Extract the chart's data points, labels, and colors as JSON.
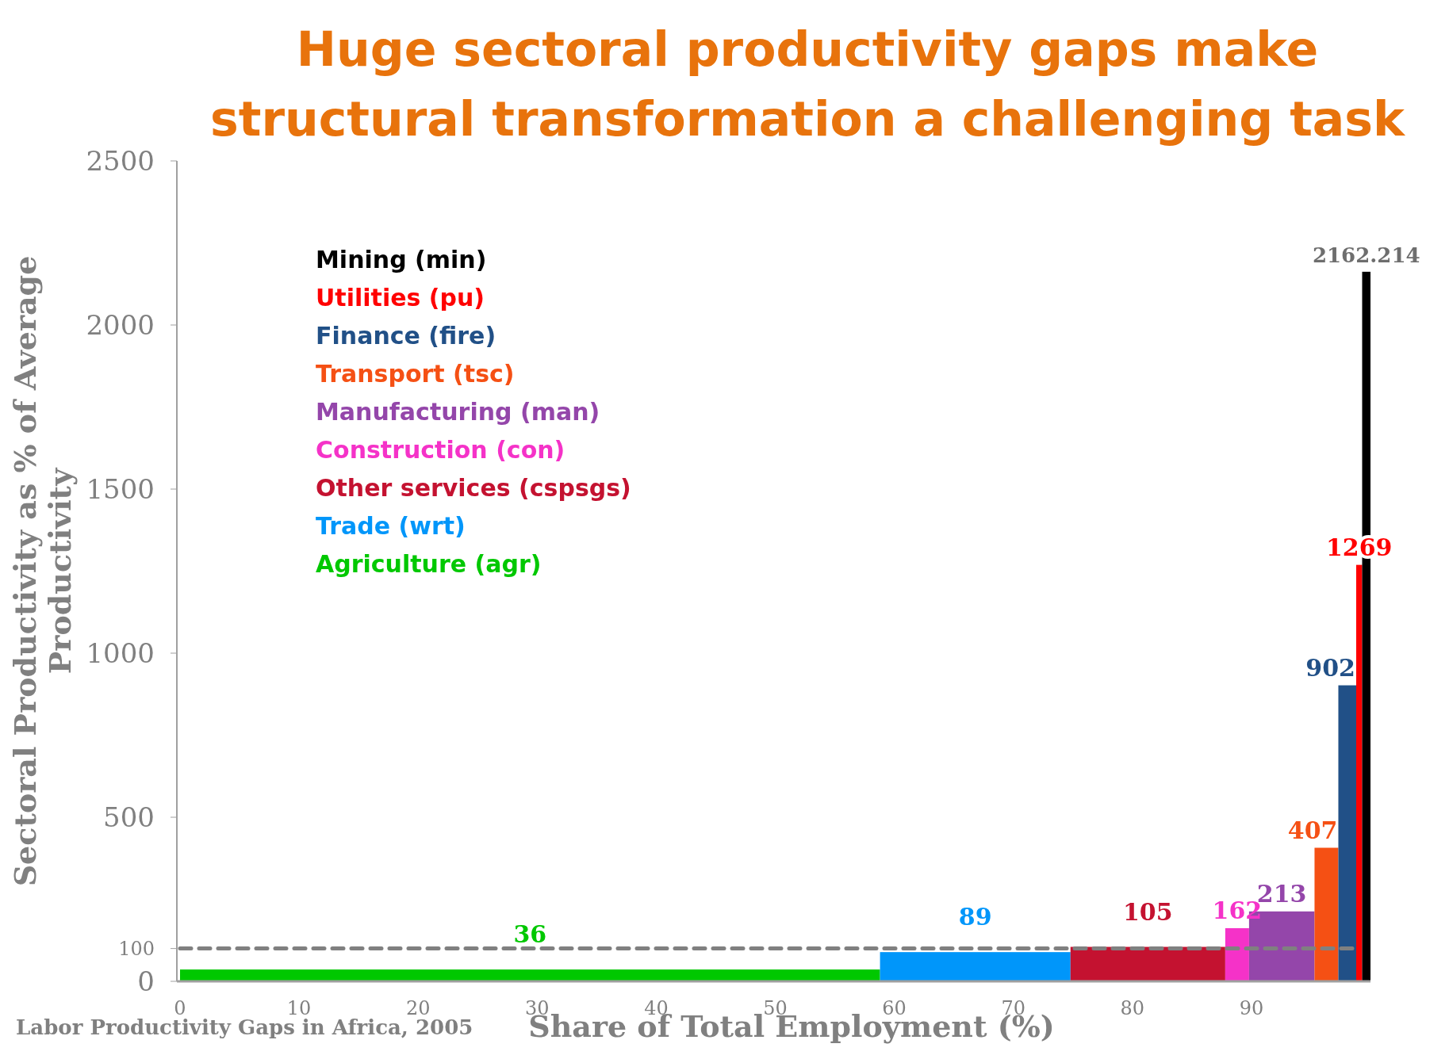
{
  "chart_data": {
    "type": "histogram",
    "title": "Huge sectoral productivity gaps make structural transformation a challenging task",
    "xlabel": "Share of Total Employment (%)",
    "ylabel": "Sectoral Productivity as % of Average Productivity",
    "categories": [
      "Agriculture (agr)",
      "Trade (wrt)",
      "Other services (cspsgs)",
      "Construction (con)",
      "Manufacturing (man)",
      "Transport (tsc)",
      "Finance (fire)",
      "Utilities (pu)",
      "Mining (min)"
    ],
    "bins": [
      0,
      58.8,
      74.8,
      87.8,
      89.8,
      95.3,
      97.3,
      98.8,
      99.3,
      100
    ],
    "values": [
      36,
      89,
      105,
      162,
      213,
      407,
      902,
      1269,
      2162.214
    ],
    "colors": [
      "#00c800",
      "#0096fa",
      "#c41230",
      "#f532c8",
      "#9446aa",
      "#f55014",
      "#215087",
      "#ff0000",
      "#000000"
    ],
    "data_labels": true,
    "xlim": [
      0,
      100
    ],
    "xticks": [
      0,
      10,
      20,
      30,
      40,
      50,
      60,
      70,
      80,
      90
    ],
    "ylim": [
      0,
      2500
    ],
    "yticks": [
      0,
      {
        "value": 100,
        "label": "100"
      },
      500,
      1000,
      1500,
      2000,
      2500
    ],
    "ref_lines": [
      {
        "axis": "y",
        "value": 100,
        "color": "#808080",
        "line_style": "dashed"
      }
    ],
    "annotations": [
      "Labor Productivity Gaps in Africa, 2005"
    ]
  }
}
